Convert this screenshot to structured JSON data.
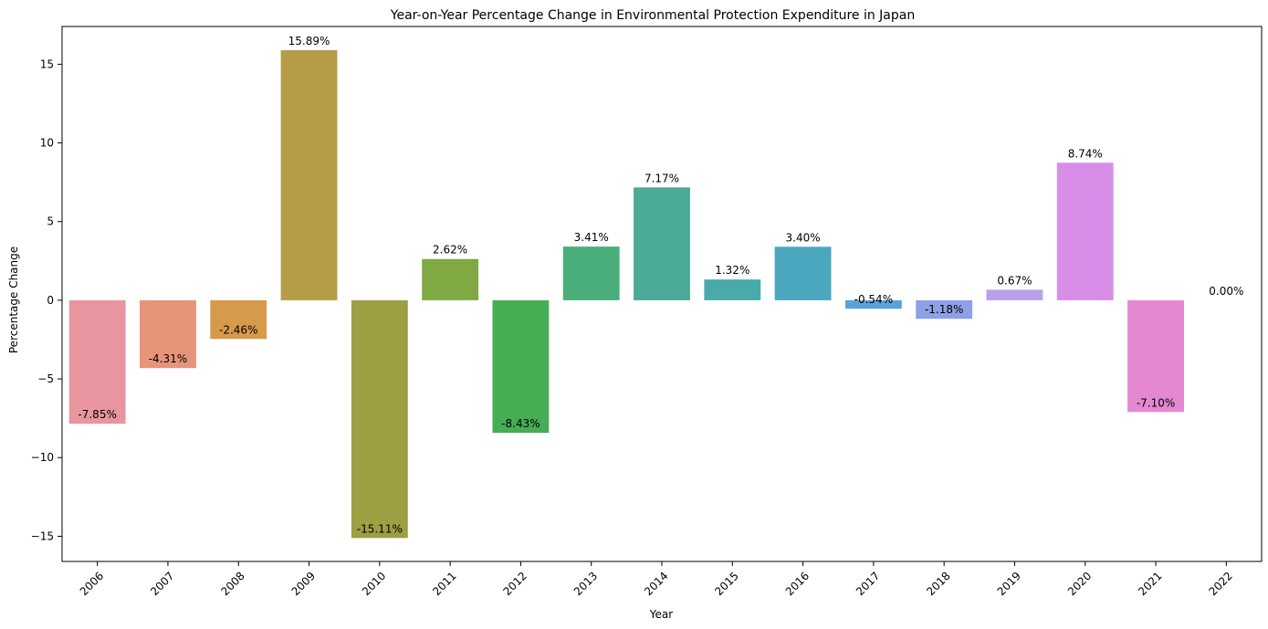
{
  "chart_data": {
    "type": "bar",
    "title": "Year-on-Year Percentage Change in Environmental Protection Expenditure in Japan",
    "xlabel": "Year",
    "ylabel": "Percentage Change",
    "categories": [
      "2006",
      "2007",
      "2008",
      "2009",
      "2010",
      "2011",
      "2012",
      "2013",
      "2014",
      "2015",
      "2016",
      "2017",
      "2018",
      "2019",
      "2020",
      "2021",
      "2022"
    ],
    "values": [
      -7.85,
      -4.31,
      -2.46,
      15.89,
      -15.11,
      2.62,
      -8.43,
      3.41,
      7.17,
      1.32,
      3.4,
      -0.54,
      -1.18,
      0.67,
      8.74,
      -7.1,
      0.0
    ],
    "value_labels": [
      "-7.85%",
      "-4.31%",
      "-2.46%",
      "15.89%",
      "-15.11%",
      "2.62%",
      "-8.43%",
      "3.41%",
      "7.17%",
      "1.32%",
      "3.40%",
      "-0.54%",
      "-1.18%",
      "0.67%",
      "8.74%",
      "-7.10%",
      "0.00%"
    ],
    "colors": [
      "#e8959f",
      "#e6957a",
      "#d79a4a",
      "#b59c46",
      "#9c9f42",
      "#80a843",
      "#46ad55",
      "#4aae7b",
      "#4aa997",
      "#48aaa9",
      "#4aa7be",
      "#58a2d9",
      "#8ea0e6",
      "#b8a0ea",
      "#d88ee8",
      "#e588d2",
      "#eb8fb4"
    ],
    "y_ticks": [
      -15,
      -10,
      -5,
      0,
      5,
      10,
      15
    ],
    "y_tick_labels": [
      "−15",
      "−10",
      "−5",
      "0",
      "5",
      "10",
      "15"
    ],
    "ylim": [
      -16.6,
      17.4
    ],
    "grid": false,
    "legend": "none"
  }
}
